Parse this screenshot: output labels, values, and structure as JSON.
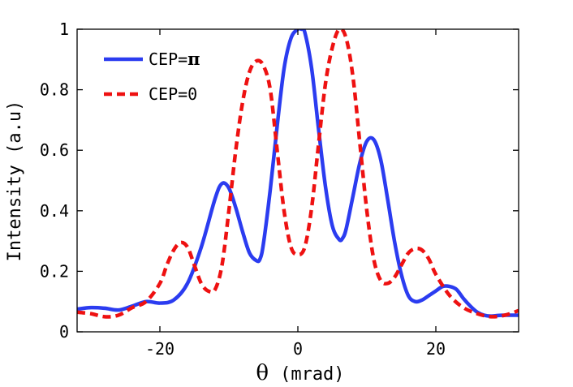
{
  "chart_data": {
    "type": "line",
    "title": "",
    "xlabel_symbol": "θ",
    "xlabel_unit": "(mrad)",
    "ylabel": "Intensity (a.u)",
    "xlim": [
      -32,
      32
    ],
    "ylim": [
      0,
      1
    ],
    "xticks": [
      -20,
      0,
      20
    ],
    "xtick_labels": [
      "-20",
      "0",
      "20"
    ],
    "yticks": [
      0,
      0.2,
      0.4,
      0.6,
      0.8,
      1
    ],
    "ytick_labels": [
      "0",
      "0.2",
      "0.4",
      "0.6",
      "0.8",
      "1"
    ],
    "grid": false,
    "legend_position": "top-left",
    "series": [
      {
        "name": "CEP=π",
        "label_prefix": "CEP=",
        "label_symbol": "π",
        "color": "#2b3cf0",
        "style": "solid",
        "x": [
          -32,
          -30,
          -28,
          -26,
          -24,
          -22,
          -20,
          -18,
          -16,
          -14,
          -12,
          -11,
          -10,
          -9,
          -8,
          -7,
          -6,
          -5.5,
          -5,
          -4,
          -3,
          -2,
          -1,
          0,
          0.5,
          1,
          2,
          3,
          4,
          5,
          6,
          6.5,
          7,
          8,
          9,
          10,
          11,
          12,
          13,
          14,
          15,
          16,
          17,
          18,
          19,
          20,
          21,
          22,
          23,
          24,
          25,
          26,
          27,
          28,
          29,
          30,
          31,
          32
        ],
        "y": [
          0.075,
          0.08,
          0.078,
          0.072,
          0.085,
          0.1,
          0.095,
          0.105,
          0.16,
          0.28,
          0.44,
          0.49,
          0.475,
          0.41,
          0.33,
          0.26,
          0.235,
          0.24,
          0.29,
          0.47,
          0.68,
          0.87,
          0.97,
          1.0,
          1.0,
          0.99,
          0.87,
          0.67,
          0.48,
          0.35,
          0.305,
          0.31,
          0.34,
          0.45,
          0.56,
          0.63,
          0.635,
          0.57,
          0.44,
          0.3,
          0.19,
          0.12,
          0.1,
          0.105,
          0.12,
          0.135,
          0.15,
          0.15,
          0.14,
          0.11,
          0.085,
          0.065,
          0.055,
          0.052,
          0.054,
          0.055,
          0.055,
          0.055
        ]
      },
      {
        "name": "CEP=0",
        "label_prefix": "CEP=0",
        "label_symbol": "",
        "color": "#ee1111",
        "style": "dashed",
        "x": [
          -32,
          -30,
          -28,
          -26,
          -24,
          -22,
          -20,
          -19,
          -18,
          -17,
          -16,
          -15,
          -14,
          -13,
          -12,
          -11,
          -10,
          -9,
          -8,
          -7,
          -6,
          -5,
          -4,
          -3,
          -2,
          -1,
          0,
          1,
          2,
          3,
          4,
          5,
          6,
          7,
          8,
          9,
          10,
          11,
          12,
          13,
          14,
          15,
          16,
          17,
          18,
          19,
          20,
          22,
          24,
          26,
          28,
          30,
          32
        ],
        "y": [
          0.065,
          0.06,
          0.05,
          0.055,
          0.08,
          0.1,
          0.16,
          0.22,
          0.27,
          0.295,
          0.28,
          0.22,
          0.16,
          0.135,
          0.14,
          0.22,
          0.4,
          0.6,
          0.76,
          0.86,
          0.895,
          0.88,
          0.8,
          0.6,
          0.4,
          0.28,
          0.255,
          0.28,
          0.41,
          0.62,
          0.82,
          0.94,
          1.0,
          0.97,
          0.84,
          0.62,
          0.4,
          0.24,
          0.17,
          0.16,
          0.18,
          0.22,
          0.26,
          0.275,
          0.27,
          0.24,
          0.19,
          0.12,
          0.08,
          0.06,
          0.05,
          0.055,
          0.07
        ]
      }
    ]
  }
}
